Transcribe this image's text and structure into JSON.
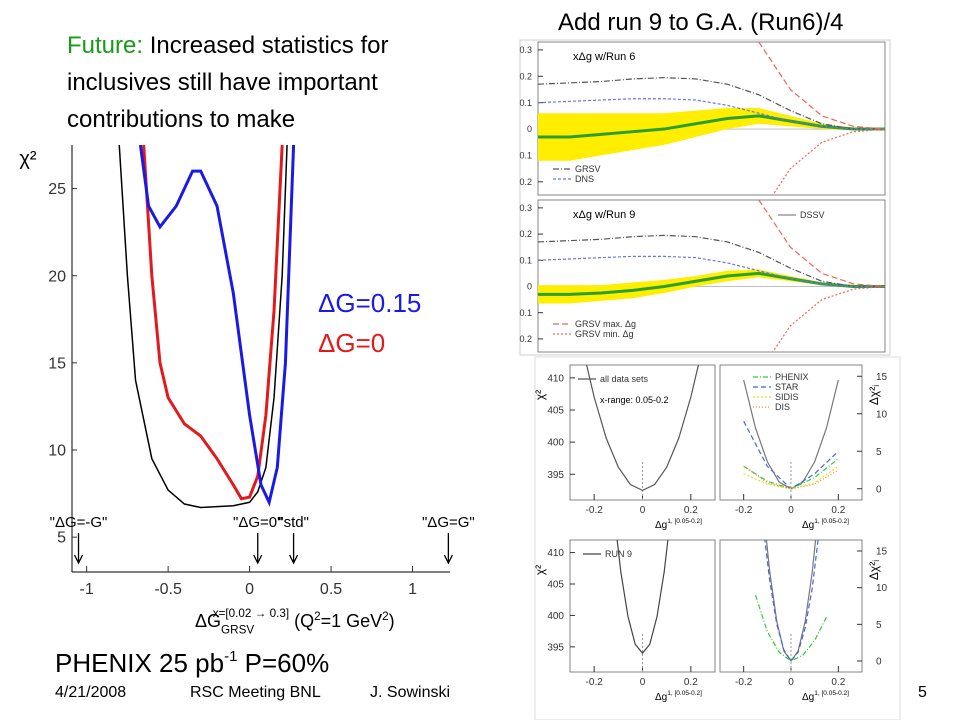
{
  "slide": {
    "future_label": "Future:",
    "future_lines": [
      "Increased statistics for",
      "inclusives still have important",
      "contributions to make"
    ],
    "right_title": "Add run 9 to G.A.  (Run6)/4",
    "phenix": {
      "text": "PHENIX 25 pb",
      "sup": "-1",
      "rest": " P=60%"
    },
    "footer": {
      "date": "4/21/2008",
      "meeting": "RSC Meeting BNL",
      "author": "J. Sowinski",
      "page": "5"
    }
  },
  "chart_data": [
    {
      "type": "line",
      "ylabel": "χ²",
      "xlabel": {
        "main": "ΔG",
        "sub": "GRSV",
        "sup": "x=[0.02 → 0.3]",
        "rest": " (Q",
        "sup2": "2",
        "rest2": "=1 GeV",
        "sup3": "2",
        "end": ")"
      },
      "xlim": [
        -1.09,
        1.23
      ],
      "ylim": [
        3.0,
        27.5
      ],
      "xticks": [
        -1,
        -0.5,
        0,
        0.5,
        1
      ],
      "yticks": [
        5,
        10,
        15,
        20,
        25
      ],
      "series": [
        {
          "color": "#000000",
          "width": 1.5,
          "x": [
            -0.8,
            -0.75,
            -0.7,
            -0.6,
            -0.5,
            -0.4,
            -0.3,
            -0.1,
            0.0,
            0.05,
            0.1,
            0.15,
            0.2,
            0.23
          ],
          "values": [
            27.5,
            20,
            14,
            9.5,
            7.7,
            6.9,
            6.7,
            6.8,
            7.0,
            7.6,
            9,
            13,
            20,
            27.5
          ]
        },
        {
          "name": "ΔG=0",
          "color": "#e31a1c",
          "width": 3,
          "x": [
            -0.65,
            -0.6,
            -0.55,
            -0.5,
            -0.4,
            -0.3,
            -0.2,
            -0.1,
            -0.05,
            0.0,
            0.05,
            0.1,
            0.15,
            0.2
          ],
          "values": [
            27.5,
            20,
            15,
            13,
            11.5,
            10.8,
            9.5,
            8,
            7.2,
            7.3,
            8.5,
            12,
            18,
            27.5
          ]
        },
        {
          "name": "ΔG=0.15",
          "color": "#1a1ae6",
          "width": 3,
          "x": [
            -0.67,
            -0.62,
            -0.55,
            -0.45,
            -0.35,
            -0.3,
            -0.2,
            -0.1,
            0.0,
            0.07,
            0.12,
            0.17,
            0.22,
            0.27
          ],
          "values": [
            27.5,
            24,
            22.8,
            24,
            26,
            26,
            24,
            19,
            12,
            8,
            7,
            9,
            15,
            27.5
          ]
        }
      ],
      "annotations": [
        {
          "text": "\"ΔG=-G\"",
          "x": -1.05
        },
        {
          "text": "\"ΔG=0\"",
          "x": 0.05
        },
        {
          "text": "\"std\"",
          "x": 0.27
        },
        {
          "text": "\"ΔG=G\"",
          "x": 1.22
        }
      ]
    },
    {
      "type": "line",
      "title": "xΔg w/Run 6",
      "ylim": [
        -0.25,
        0.33
      ],
      "yticks": [
        0.3,
        0.2,
        0.1,
        0,
        {
          "value": -0.1,
          "label": "0.1"
        },
        {
          "value": -0.2,
          "label": "0.2"
        }
      ],
      "series": [
        {
          "color": "#2ca02c",
          "width": 3,
          "band_color": "#ffee00",
          "values": [
            -0.03,
            -0.03,
            -0.02,
            -0.01,
            0.0,
            0.02,
            0.04,
            0.05,
            0.03,
            0.01,
            0,
            0
          ],
          "errors": [
            0.09,
            0.09,
            0.08,
            0.07,
            0.06,
            0.05,
            0.04,
            0.03,
            0.02,
            0.01,
            0.005,
            0
          ]
        },
        {
          "name": "GRSV",
          "color": "#555555",
          "dash": "6,2,1,2",
          "values": [
            0.17,
            0.175,
            0.18,
            0.19,
            0.195,
            0.19,
            0.17,
            0.13,
            0.07,
            0.02,
            0.0,
            0.0
          ]
        },
        {
          "name": "DNS",
          "color": "#6677dd",
          "dash": "3,2",
          "values": [
            0.1,
            0.105,
            0.11,
            0.115,
            0.115,
            0.11,
            0.09,
            0.06,
            0.03,
            0.01,
            0,
            0
          ]
        },
        {
          "color": "#ee6655",
          "dash": "6,3",
          "values": [
            null,
            null,
            null,
            null,
            null,
            null,
            null,
            0.33,
            0.15,
            0.05,
            0.01,
            0
          ]
        },
        {
          "color": "#ee6655",
          "dash": "2,2",
          "values": [
            null,
            null,
            null,
            null,
            null,
            null,
            null,
            -0.33,
            -0.15,
            -0.05,
            -0.01,
            0
          ]
        }
      ]
    },
    {
      "type": "line",
      "title": "xΔg w/Run 9",
      "ylim": [
        -0.25,
        0.33
      ],
      "yticks": [
        0.3,
        0.2,
        0.1,
        0,
        {
          "value": -0.1,
          "label": "0.1"
        },
        {
          "value": -0.2,
          "label": "0.2"
        }
      ],
      "series": [
        {
          "name": "DSSV",
          "color": "#2ca02c",
          "width": 3,
          "band_color": "#ffee00",
          "values": [
            -0.03,
            -0.03,
            -0.025,
            -0.015,
            0.0,
            0.02,
            0.04,
            0.05,
            0.03,
            0.01,
            0,
            0
          ],
          "errors": [
            0.035,
            0.035,
            0.03,
            0.03,
            0.025,
            0.02,
            0.02,
            0.015,
            0.01,
            0.005,
            0.003,
            0
          ]
        },
        {
          "color": "#555555",
          "dash": "6,2,1,2",
          "values": [
            0.17,
            0.175,
            0.18,
            0.19,
            0.195,
            0.19,
            0.17,
            0.13,
            0.07,
            0.02,
            0.0,
            0.0
          ]
        },
        {
          "color": "#6677dd",
          "dash": "3,2",
          "values": [
            0.1,
            0.105,
            0.11,
            0.115,
            0.115,
            0.11,
            0.09,
            0.06,
            0.03,
            0.01,
            0,
            0
          ]
        },
        {
          "name": "GRSV max. Δg",
          "color": "#ee6655",
          "dash": "6,3",
          "values": [
            null,
            null,
            null,
            null,
            null,
            null,
            null,
            0.33,
            0.15,
            0.05,
            0.01,
            0
          ]
        },
        {
          "name": "GRSV min. Δg",
          "color": "#ee6655",
          "dash": "2,2",
          "values": [
            null,
            null,
            null,
            null,
            null,
            null,
            null,
            -0.33,
            -0.15,
            -0.05,
            -0.01,
            0
          ]
        }
      ]
    },
    {
      "type": "line",
      "ylabel": "χ²",
      "xlabel": {
        "main": "Δg",
        "sup": "1, [0.05-0.2]"
      },
      "note": "x-range: 0.05-0.2",
      "xlim": [
        -0.3,
        0.3
      ],
      "ylim": [
        391,
        412
      ],
      "xticks": [
        -0.2,
        0,
        0.2
      ],
      "yticks": [
        395,
        400,
        405,
        410
      ],
      "ytick_side": "left",
      "series": [
        {
          "name": "all data sets",
          "color": "#555555",
          "x": [
            -0.25,
            -0.2,
            -0.15,
            -0.1,
            -0.05,
            0,
            0.05,
            0.1,
            0.15,
            0.2,
            0.25
          ],
          "values": [
            415,
            407,
            400.6,
            396.1,
            393.4,
            392.5,
            393.4,
            396.1,
            400.6,
            407,
            415
          ]
        }
      ]
    },
    {
      "type": "line",
      "ylabel": "Δχ²ᵢ",
      "xlabel": {
        "main": "Δg",
        "sup": "1, [0.05-0.2]"
      },
      "xlim": [
        -0.3,
        0.3
      ],
      "ylim": [
        -1.5,
        16.5
      ],
      "xticks": [
        -0.2,
        0,
        0.2
      ],
      "yticks": [
        0,
        5,
        10,
        15
      ],
      "ytick_side": "right",
      "series": [
        {
          "color": "#777777",
          "x": [
            -0.2,
            -0.15,
            -0.1,
            -0.05,
            0,
            0.05,
            0.1,
            0.15,
            0.2
          ],
          "values": [
            14.5,
            8.1,
            3.6,
            0.9,
            0,
            0.9,
            3.6,
            8.1,
            14.5
          ]
        },
        {
          "name": "PHENIX",
          "color": "#33cc33",
          "dash": "5,2,1,2",
          "x": [
            -0.2,
            -0.1,
            0,
            0.1,
            0.2
          ],
          "values": [
            3,
            1,
            0,
            1.5,
            4
          ]
        },
        {
          "name": "STAR",
          "color": "#4466dd",
          "dash": "5,3",
          "x": [
            -0.2,
            -0.1,
            0,
            0.1,
            0.2
          ],
          "values": [
            9,
            3,
            0,
            2,
            5
          ]
        },
        {
          "name": "SIDIS",
          "color": "#dddd22",
          "dash": "2,2",
          "x": [
            -0.2,
            -0.1,
            0,
            0.1,
            0.2
          ],
          "values": [
            2,
            0.6,
            0,
            0.8,
            3
          ]
        },
        {
          "name": "DIS",
          "color": "#ee8833",
          "dash": "1,2",
          "x": [
            -0.2,
            -0.1,
            0,
            0.1,
            0.2
          ],
          "values": [
            3,
            0.8,
            0,
            0.6,
            2.5
          ]
        }
      ]
    },
    {
      "type": "line",
      "ylabel": "χ²",
      "xlabel": {
        "main": "Δg",
        "sup": "1, [0.05-0.2]"
      },
      "xlim": [
        -0.3,
        0.3
      ],
      "ylim": [
        391,
        412
      ],
      "xticks": [
        -0.2,
        0,
        0.2
      ],
      "yticks": [
        395,
        400,
        405,
        410
      ],
      "ytick_side": "left",
      "series": [
        {
          "name": "RUN 9",
          "color": "#444444",
          "x": [
            -0.12,
            -0.09,
            -0.06,
            -0.03,
            0,
            0.03,
            0.06,
            0.09,
            0.12
          ],
          "values": [
            417,
            407,
            399.8,
            395.4,
            394,
            395.4,
            399.8,
            407,
            417
          ]
        }
      ]
    },
    {
      "type": "line",
      "ylabel": "Δχ²ᵢ",
      "xlabel": {
        "main": "Δg",
        "sup": "1, [0.05-0.2]"
      },
      "xlim": [
        -0.3,
        0.3
      ],
      "ylim": [
        -1.5,
        16.5
      ],
      "xticks": [
        -0.2,
        0,
        0.2
      ],
      "yticks": [
        0,
        5,
        10,
        15
      ],
      "ytick_side": "right",
      "series": [
        {
          "color": "#777777",
          "x": [
            -0.12,
            -0.09,
            -0.06,
            -0.03,
            0,
            0.03,
            0.06,
            0.09,
            0.12
          ],
          "values": [
            21.6,
            12.2,
            5.4,
            1.35,
            0,
            1.35,
            5.4,
            12.2,
            21.6
          ]
        },
        {
          "color": "#4466dd",
          "dash": "5,3",
          "x": [
            -0.12,
            -0.09,
            -0.06,
            -0.03,
            0,
            0.03,
            0.06,
            0.09,
            0.12
          ],
          "values": [
            19,
            11,
            5,
            1.5,
            0,
            1.2,
            4.5,
            10,
            18
          ]
        },
        {
          "color": "#33cc33",
          "dash": "5,2,1,2",
          "x": [
            -0.15,
            -0.1,
            -0.05,
            0,
            0.05,
            0.1,
            0.15
          ],
          "values": [
            9,
            4,
            1.2,
            0,
            0.8,
            2.8,
            6
          ]
        }
      ]
    }
  ]
}
